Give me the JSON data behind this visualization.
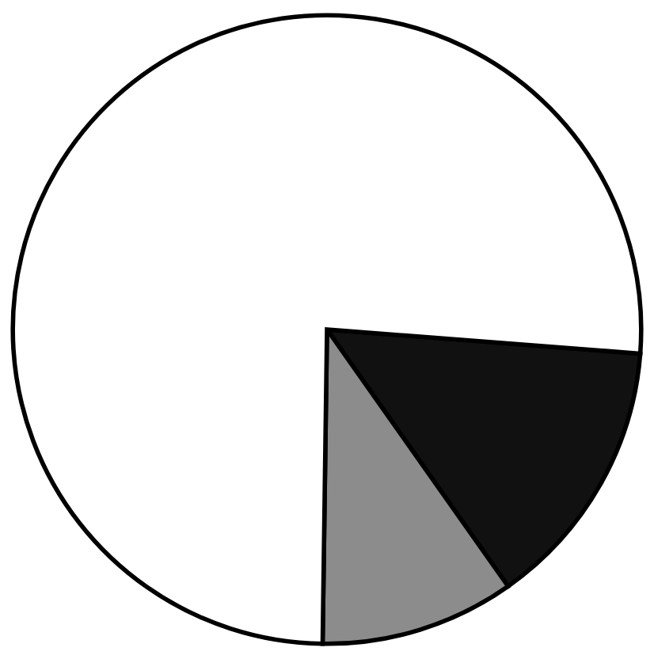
{
  "chart_data": {
    "type": "pie",
    "categories": [
      null,
      null,
      null
    ],
    "values": [
      14,
      10,
      76
    ],
    "colors": [
      "#111111",
      "#8c8c8c",
      "#ffffff"
    ]
  }
}
